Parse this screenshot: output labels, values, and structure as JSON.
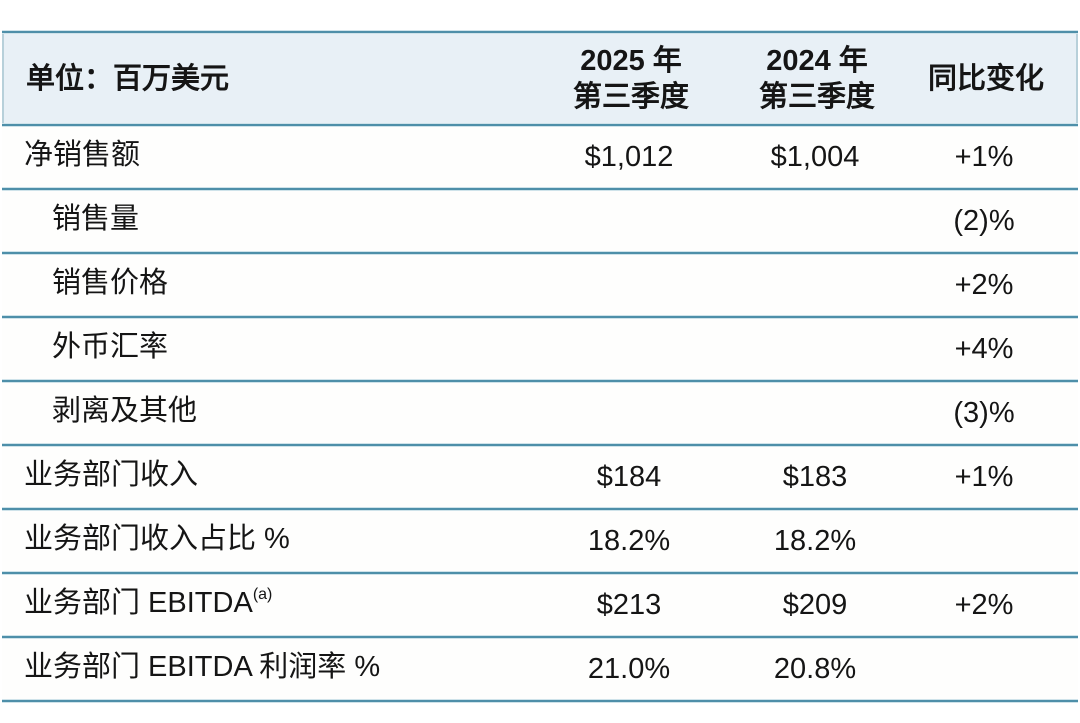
{
  "colors": {
    "header_bg": "#e8f0f6",
    "divider_core": "#4e8fa9",
    "divider_edge": "#cfe3ea",
    "header_border": "#b7d0da",
    "row_bg": "#fefefd",
    "text": "#151515",
    "page_bg": "#ffffff"
  },
  "table": {
    "unit_label": "单位：百万美元",
    "columns": [
      {
        "label": "2025 年\n第三季度"
      },
      {
        "label": "2024 年\n第三季度"
      },
      {
        "label": "同比变化"
      }
    ],
    "rows": [
      {
        "label": "净销售额",
        "q3_2025": "$1,012",
        "q3_2024": "$1,004",
        "yoy": "+1%"
      },
      {
        "label": "销售量",
        "q3_2025": "",
        "q3_2024": "",
        "yoy": "(2)%"
      },
      {
        "label": "销售价格",
        "q3_2025": "",
        "q3_2024": "",
        "yoy": "+2%"
      },
      {
        "label": "外币汇率",
        "q3_2025": "",
        "q3_2024": "",
        "yoy": "+4%"
      },
      {
        "label": "剥离及其他",
        "q3_2025": "",
        "q3_2024": "",
        "yoy": "(3)%"
      },
      {
        "label": "业务部门收入",
        "q3_2025": "$184",
        "q3_2024": "$183",
        "yoy": "+1%"
      },
      {
        "label": "业务部门收入占比 %",
        "q3_2025": "18.2%",
        "q3_2024": "18.2%",
        "yoy": ""
      },
      {
        "label": "业务部门 EBITDA",
        "label_sup": "(a)",
        "q3_2025": "$213",
        "q3_2024": "$209",
        "yoy": "+2%"
      },
      {
        "label": "业务部门 EBITDA 利润率 %",
        "q3_2025": "21.0%",
        "q3_2024": "20.8%",
        "yoy": ""
      }
    ]
  },
  "chart_data": {
    "type": "table",
    "title": "单位：百万美元",
    "columns": [
      "",
      "2025 年第三季度",
      "2024 年第三季度",
      "同比变化"
    ],
    "rows": [
      [
        "净销售额",
        "$1,012",
        "$1,004",
        "+1%"
      ],
      [
        "销售量",
        "",
        "",
        "(2)%"
      ],
      [
        "销售价格",
        "",
        "",
        "+2%"
      ],
      [
        "外币汇率",
        "",
        "",
        "+4%"
      ],
      [
        "剥离及其他",
        "",
        "",
        "(3)%"
      ],
      [
        "业务部门收入",
        "$184",
        "$183",
        "+1%"
      ],
      [
        "业务部门收入占比 %",
        "18.2%",
        "18.2%",
        ""
      ],
      [
        "业务部门 EBITDA(a)",
        "$213",
        "$209",
        "+2%"
      ],
      [
        "业务部门 EBITDA 利润率 %",
        "21.0%",
        "20.8%",
        ""
      ]
    ]
  }
}
